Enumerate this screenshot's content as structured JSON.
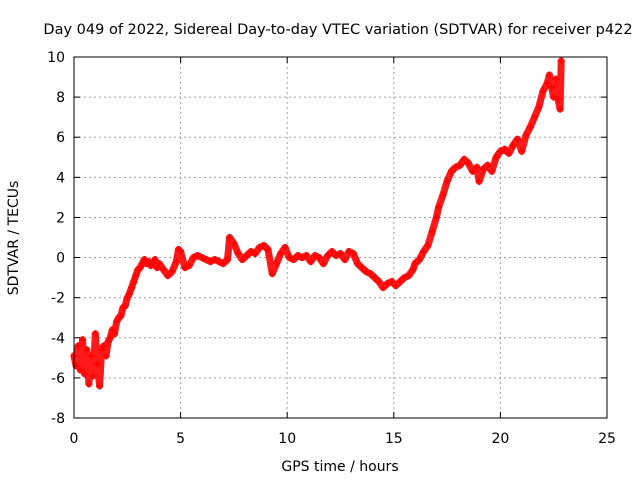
{
  "chart_data": {
    "type": "scatter",
    "title": "Day 049 of 2022, Sidereal Day-to-day VTEC variation (SDTVAR) for receiver p422",
    "xlabel": "GPS time / hours",
    "ylabel": "SDTVAR / TECUs",
    "xlim": [
      0,
      25
    ],
    "ylim": [
      -8,
      10
    ],
    "x_ticks": [
      0,
      5,
      10,
      15,
      20,
      25
    ],
    "y_ticks": [
      -8,
      -6,
      -4,
      -2,
      0,
      2,
      4,
      6,
      8,
      10
    ],
    "grid": true,
    "marker": "plus",
    "color": "#ff0000",
    "series": [
      {
        "points": [
          [
            0.0,
            -4.9
          ],
          [
            0.1,
            -5.4
          ],
          [
            0.2,
            -4.4
          ],
          [
            0.3,
            -5.6
          ],
          [
            0.4,
            -4.1
          ],
          [
            0.5,
            -5.8
          ],
          [
            0.6,
            -4.6
          ],
          [
            0.7,
            -6.3
          ],
          [
            0.8,
            -4.9
          ],
          [
            0.9,
            -5.9
          ],
          [
            1.0,
            -3.8
          ],
          [
            1.1,
            -5.3
          ],
          [
            1.2,
            -6.4
          ],
          [
            1.3,
            -4.6
          ],
          [
            1.4,
            -4.4
          ],
          [
            1.5,
            -4.9
          ],
          [
            1.6,
            -4.2
          ],
          [
            1.7,
            -4.0
          ],
          [
            1.8,
            -3.6
          ],
          [
            1.9,
            -3.8
          ],
          [
            2.0,
            -3.2
          ],
          [
            2.1,
            -3.0
          ],
          [
            2.2,
            -2.9
          ],
          [
            2.3,
            -2.5
          ],
          [
            2.4,
            -2.4
          ],
          [
            2.5,
            -2.0
          ],
          [
            2.6,
            -1.8
          ],
          [
            2.7,
            -1.5
          ],
          [
            2.8,
            -1.2
          ],
          [
            2.9,
            -0.9
          ],
          [
            3.0,
            -0.6
          ],
          [
            3.1,
            -0.5
          ],
          [
            3.2,
            -0.3
          ],
          [
            3.3,
            -0.1
          ],
          [
            3.4,
            -0.3
          ],
          [
            3.5,
            -0.2
          ],
          [
            3.6,
            -0.4
          ],
          [
            3.7,
            -0.3
          ],
          [
            3.8,
            -0.1
          ],
          [
            3.9,
            -0.5
          ],
          [
            4.0,
            -0.3
          ],
          [
            4.2,
            -0.6
          ],
          [
            4.4,
            -0.9
          ],
          [
            4.6,
            -0.7
          ],
          [
            4.8,
            -0.2
          ],
          [
            4.9,
            0.4
          ],
          [
            5.0,
            0.3
          ],
          [
            5.2,
            -0.5
          ],
          [
            5.4,
            -0.4
          ],
          [
            5.6,
            0.0
          ],
          [
            5.8,
            0.1
          ],
          [
            6.0,
            0.0
          ],
          [
            6.2,
            -0.1
          ],
          [
            6.4,
            -0.2
          ],
          [
            6.6,
            -0.1
          ],
          [
            6.8,
            -0.2
          ],
          [
            7.0,
            -0.3
          ],
          [
            7.2,
            -0.1
          ],
          [
            7.3,
            1.0
          ],
          [
            7.5,
            0.7
          ],
          [
            7.7,
            0.2
          ],
          [
            7.9,
            -0.1
          ],
          [
            8.1,
            0.1
          ],
          [
            8.3,
            0.3
          ],
          [
            8.5,
            0.2
          ],
          [
            8.7,
            0.5
          ],
          [
            8.9,
            0.6
          ],
          [
            9.1,
            0.4
          ],
          [
            9.3,
            -0.8
          ],
          [
            9.5,
            -0.3
          ],
          [
            9.7,
            0.2
          ],
          [
            9.9,
            0.5
          ],
          [
            10.1,
            0.0
          ],
          [
            10.3,
            -0.1
          ],
          [
            10.5,
            0.1
          ],
          [
            10.7,
            0.0
          ],
          [
            10.9,
            0.1
          ],
          [
            11.1,
            -0.2
          ],
          [
            11.3,
            0.1
          ],
          [
            11.5,
            0.0
          ],
          [
            11.7,
            -0.3
          ],
          [
            11.9,
            0.1
          ],
          [
            12.1,
            0.3
          ],
          [
            12.3,
            0.1
          ],
          [
            12.5,
            0.2
          ],
          [
            12.7,
            -0.1
          ],
          [
            12.9,
            0.3
          ],
          [
            13.1,
            0.2
          ],
          [
            13.3,
            -0.3
          ],
          [
            13.5,
            -0.5
          ],
          [
            13.7,
            -0.7
          ],
          [
            13.9,
            -0.8
          ],
          [
            14.1,
            -1.0
          ],
          [
            14.3,
            -1.2
          ],
          [
            14.5,
            -1.5
          ],
          [
            14.7,
            -1.3
          ],
          [
            14.9,
            -1.2
          ],
          [
            15.1,
            -1.4
          ],
          [
            15.3,
            -1.2
          ],
          [
            15.5,
            -1.0
          ],
          [
            15.7,
            -0.9
          ],
          [
            15.9,
            -0.6
          ],
          [
            16.0,
            -0.3
          ],
          [
            16.2,
            -0.1
          ],
          [
            16.4,
            0.3
          ],
          [
            16.6,
            0.6
          ],
          [
            16.8,
            1.3
          ],
          [
            17.0,
            2.0
          ],
          [
            17.1,
            2.5
          ],
          [
            17.3,
            3.1
          ],
          [
            17.5,
            3.8
          ],
          [
            17.7,
            4.3
          ],
          [
            17.9,
            4.5
          ],
          [
            18.1,
            4.6
          ],
          [
            18.3,
            4.9
          ],
          [
            18.5,
            4.7
          ],
          [
            18.7,
            4.3
          ],
          [
            18.9,
            4.5
          ],
          [
            19.0,
            3.8
          ],
          [
            19.2,
            4.4
          ],
          [
            19.4,
            4.6
          ],
          [
            19.6,
            4.3
          ],
          [
            19.8,
            5.0
          ],
          [
            20.0,
            5.3
          ],
          [
            20.2,
            5.4
          ],
          [
            20.4,
            5.2
          ],
          [
            20.6,
            5.6
          ],
          [
            20.8,
            5.9
          ],
          [
            21.0,
            5.3
          ],
          [
            21.2,
            6.1
          ],
          [
            21.4,
            6.5
          ],
          [
            21.6,
            7.0
          ],
          [
            21.8,
            7.5
          ],
          [
            22.0,
            8.3
          ],
          [
            22.2,
            8.7
          ],
          [
            22.3,
            9.1
          ],
          [
            22.4,
            8.5
          ],
          [
            22.5,
            8.0
          ],
          [
            22.6,
            8.9
          ],
          [
            22.7,
            7.9
          ],
          [
            22.8,
            7.4
          ],
          [
            22.85,
            9.8
          ]
        ]
      }
    ]
  }
}
